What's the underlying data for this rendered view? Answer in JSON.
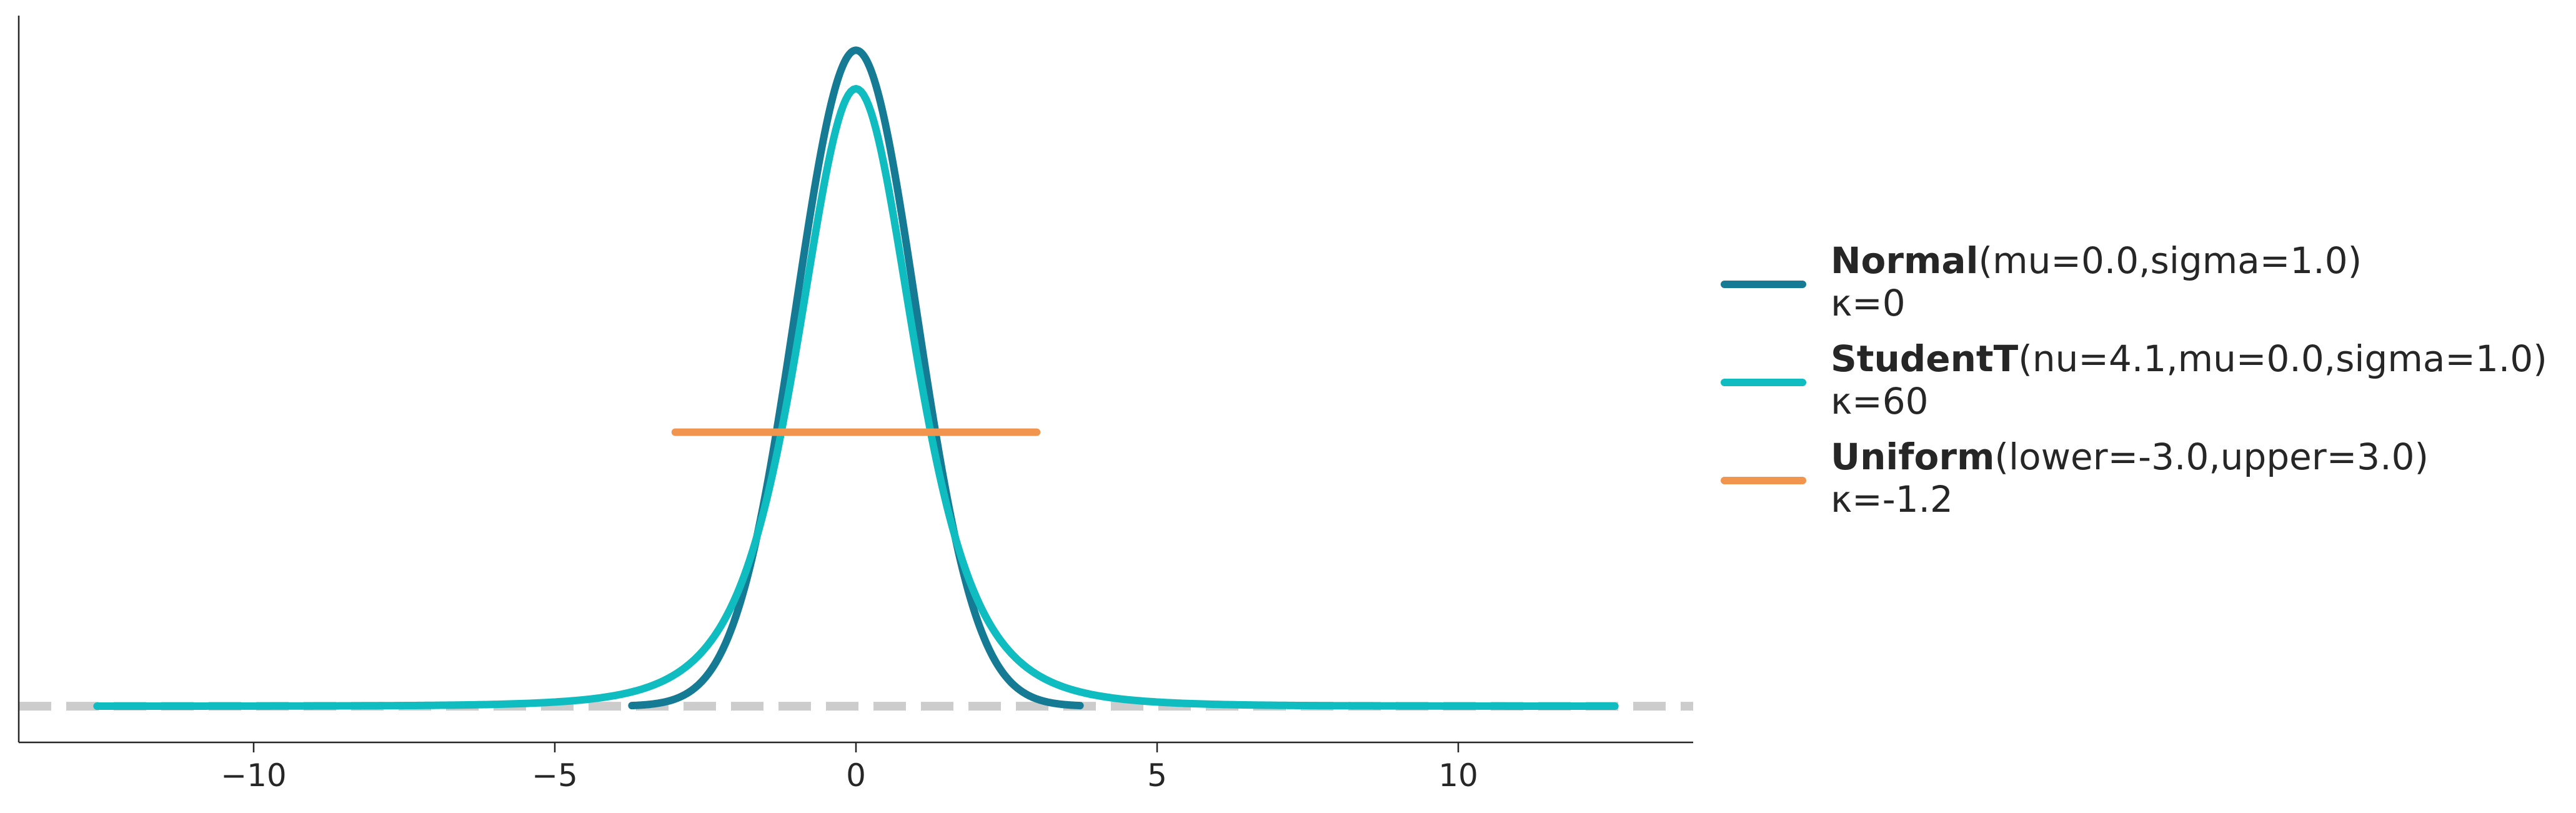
{
  "chart_data": {
    "type": "line",
    "title": "",
    "xlabel": "",
    "ylabel": "",
    "xlim": [
      -13.9,
      13.9
    ],
    "ylim": [
      -0.022,
      0.42
    ],
    "xticks": [
      -10,
      -5,
      0,
      5,
      10
    ],
    "xtick_labels": [
      "−10",
      "−5",
      "0",
      "5",
      "10"
    ],
    "baseline": {
      "y": 0,
      "style": "dashed",
      "color": "#cccccc"
    },
    "grid": false,
    "legend_position": "right",
    "series": [
      {
        "key": "normal",
        "name": "Normal",
        "params": "(mu=0.0,sigma=1.0)",
        "kappa_label": "κ=0",
        "color": "#157a93",
        "distribution": "normal",
        "mu": 0.0,
        "sigma": 1.0,
        "x_range": [
          -3.72,
          3.72
        ]
      },
      {
        "key": "studentt",
        "name": "StudentT",
        "params": "(nu=4.1,mu=0.0,sigma=1.0)",
        "kappa_label": "κ=60",
        "color": "#0fbcc0",
        "distribution": "studentt",
        "nu": 4.1,
        "mu": 0.0,
        "sigma": 1.0,
        "x_range": [
          -12.6,
          12.6
        ]
      },
      {
        "key": "uniform",
        "name": "Uniform",
        "params": "(lower=-3.0,upper=3.0)",
        "kappa_label": "κ=-1.2",
        "color": "#f1944d",
        "distribution": "uniform",
        "lower": -3.0,
        "upper": 3.0,
        "x_range": [
          -3.0,
          3.0
        ]
      }
    ]
  }
}
